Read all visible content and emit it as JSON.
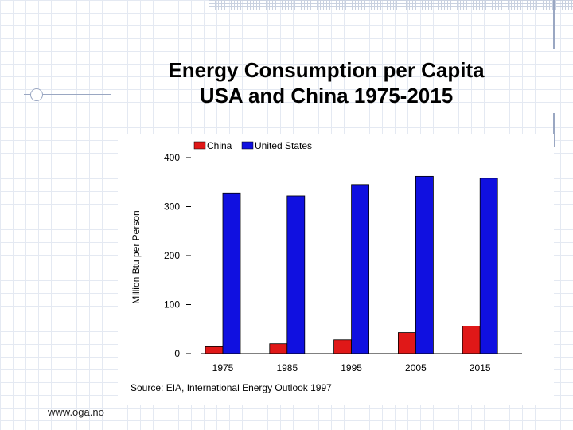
{
  "slide": {
    "title_line1": "Energy Consumption per Capita",
    "title_line2": "USA and China 1975-2015",
    "footer": "www.oga.no"
  },
  "colors": {
    "china": "#e01818",
    "united_states": "#1010e0"
  },
  "chart_data": {
    "type": "bar",
    "title": "Energy Consumption per Capita USA and China 1975-2015",
    "xlabel": "",
    "ylabel": "Million Btu per Person",
    "categories": [
      "1975",
      "1985",
      "1995",
      "2005",
      "2015"
    ],
    "series": [
      {
        "name": "China",
        "values": [
          14,
          20,
          28,
          43,
          56
        ]
      },
      {
        "name": "United States",
        "values": [
          328,
          322,
          345,
          362,
          358
        ]
      }
    ],
    "ylim": [
      0,
      400
    ],
    "yticks": [
      "0",
      "100",
      "200",
      "300",
      "400"
    ],
    "legend_position": "top",
    "source": "Source:  EIA, International Energy Outlook 1997"
  }
}
